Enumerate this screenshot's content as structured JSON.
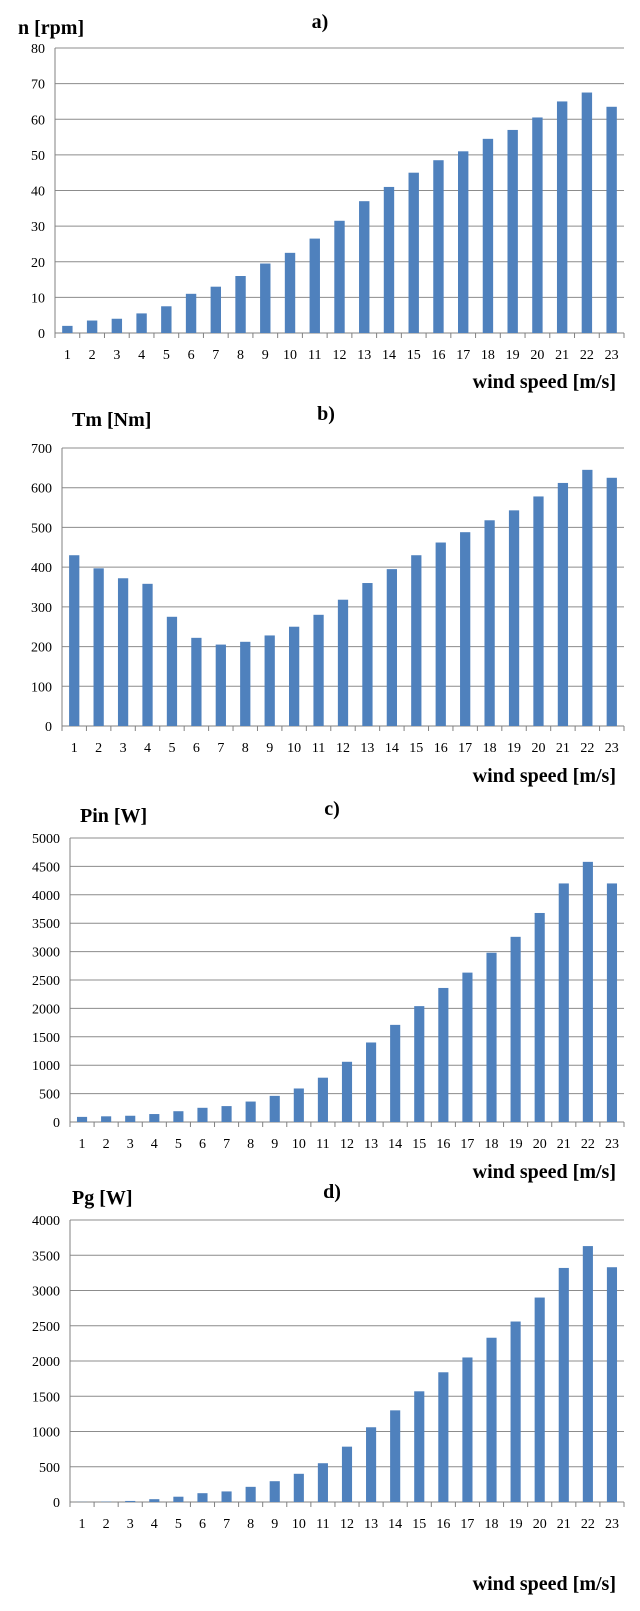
{
  "chart_data": [
    {
      "type": "bar",
      "title": "a)",
      "ylabel": "n [rpm]",
      "xlabel": "wind speed [m/s]",
      "ylim": [
        0,
        80
      ],
      "yticks": [
        0,
        10,
        20,
        30,
        40,
        50,
        60,
        70,
        80
      ],
      "grid": true,
      "categories": [
        "1",
        "2",
        "3",
        "4",
        "5",
        "6",
        "7",
        "8",
        "9",
        "10",
        "11",
        "12",
        "13",
        "14",
        "15",
        "16",
        "17",
        "18",
        "19",
        "20",
        "21",
        "22",
        "23"
      ],
      "values": [
        2,
        3.5,
        4,
        5.5,
        7.5,
        11,
        13,
        16,
        19.5,
        22.5,
        26.5,
        31.5,
        37,
        41,
        45,
        48.5,
        51,
        54.5,
        57,
        60.5,
        65,
        67.5,
        63.5
      ]
    },
    {
      "type": "bar",
      "title": "b)",
      "ylabel": "Tm [Nm]",
      "xlabel": "wind speed [m/s]",
      "ylim": [
        0,
        700
      ],
      "yticks": [
        0,
        100,
        200,
        300,
        400,
        500,
        600,
        700
      ],
      "grid": true,
      "categories": [
        "1",
        "2",
        "3",
        "4",
        "5",
        "6",
        "7",
        "8",
        "9",
        "10",
        "11",
        "12",
        "13",
        "14",
        "15",
        "16",
        "17",
        "18",
        "19",
        "20",
        "21",
        "22",
        "23"
      ],
      "values": [
        430,
        397,
        372,
        358,
        275,
        222,
        205,
        212,
        228,
        250,
        280,
        318,
        360,
        395,
        430,
        462,
        488,
        518,
        543,
        578,
        612,
        645,
        625
      ]
    },
    {
      "type": "bar",
      "title": "c)",
      "ylabel": "Pin [W]",
      "xlabel": "wind speed [m/s]",
      "ylim": [
        0,
        5000
      ],
      "yticks": [
        0,
        500,
        1000,
        1500,
        2000,
        2500,
        3000,
        3500,
        4000,
        4500,
        5000
      ],
      "grid": true,
      "categories": [
        "1",
        "2",
        "3",
        "4",
        "5",
        "6",
        "7",
        "8",
        "9",
        "10",
        "11",
        "12",
        "13",
        "14",
        "15",
        "16",
        "17",
        "18",
        "19",
        "20",
        "21",
        "22",
        "23"
      ],
      "values": [
        90,
        100,
        110,
        140,
        190,
        250,
        280,
        360,
        460,
        590,
        780,
        1060,
        1400,
        1710,
        2040,
        2360,
        2630,
        2980,
        3260,
        3680,
        4200,
        4580,
        4200
      ]
    },
    {
      "type": "bar",
      "title": "d)",
      "ylabel": "Pg [W]",
      "xlabel": "wind speed [m/s]",
      "ylim": [
        0,
        4000
      ],
      "yticks": [
        0,
        500,
        1000,
        1500,
        2000,
        2500,
        3000,
        3500,
        4000
      ],
      "grid": true,
      "categories": [
        "1",
        "2",
        "3",
        "4",
        "5",
        "6",
        "7",
        "8",
        "9",
        "10",
        "11",
        "12",
        "13",
        "14",
        "15",
        "16",
        "17",
        "18",
        "19",
        "20",
        "21",
        "22",
        "23"
      ],
      "values": [
        2,
        5,
        15,
        40,
        75,
        125,
        150,
        215,
        295,
        400,
        550,
        785,
        1060,
        1300,
        1570,
        1840,
        2050,
        2330,
        2560,
        2900,
        3320,
        3630,
        3330
      ]
    }
  ]
}
